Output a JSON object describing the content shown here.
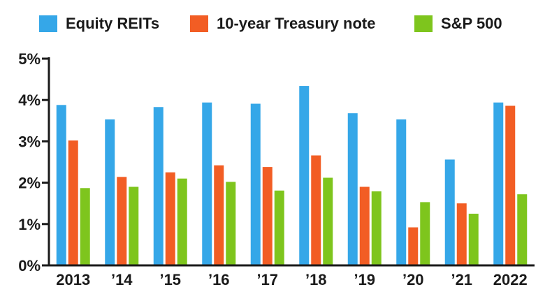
{
  "colors": {
    "equity_reits": "#35a7e8",
    "treasury": "#f25d24",
    "sp500": "#7ec51d",
    "axis": "#1a1a1a"
  },
  "legend": {
    "items": [
      {
        "label": "Equity REITs",
        "color": "#35a7e8"
      },
      {
        "label": "10-year Treasury note",
        "color": "#f25d24"
      },
      {
        "label": "S&P 500",
        "color": "#7ec51d"
      }
    ]
  },
  "chart_data": {
    "type": "bar",
    "categories": [
      "2013",
      "’14",
      "’15",
      "’16",
      "’17",
      "’18",
      "’19",
      "’20",
      "’21",
      "2022"
    ],
    "series": [
      {
        "name": "Equity REITs",
        "color": "#35a7e8",
        "values": [
          3.88,
          3.53,
          3.83,
          3.94,
          3.91,
          4.34,
          3.68,
          3.53,
          2.56,
          3.94
        ]
      },
      {
        "name": "10-year Treasury note",
        "color": "#f25d24",
        "values": [
          3.02,
          2.14,
          2.25,
          2.42,
          2.38,
          2.66,
          1.9,
          0.92,
          1.5,
          3.86
        ]
      },
      {
        "name": "S&P 500",
        "color": "#7ec51d",
        "values": [
          1.87,
          1.9,
          2.1,
          2.02,
          1.81,
          2.12,
          1.79,
          1.53,
          1.25,
          1.72
        ]
      }
    ],
    "yticks": [
      {
        "value": 0,
        "label": "0%"
      },
      {
        "value": 1,
        "label": "1%"
      },
      {
        "value": 2,
        "label": "2%"
      },
      {
        "value": 3,
        "label": "3%"
      },
      {
        "value": 4,
        "label": "4%"
      },
      {
        "value": 5,
        "label": "5%"
      }
    ],
    "ylim": [
      0,
      5
    ],
    "grid": false,
    "legend_position": "top"
  }
}
